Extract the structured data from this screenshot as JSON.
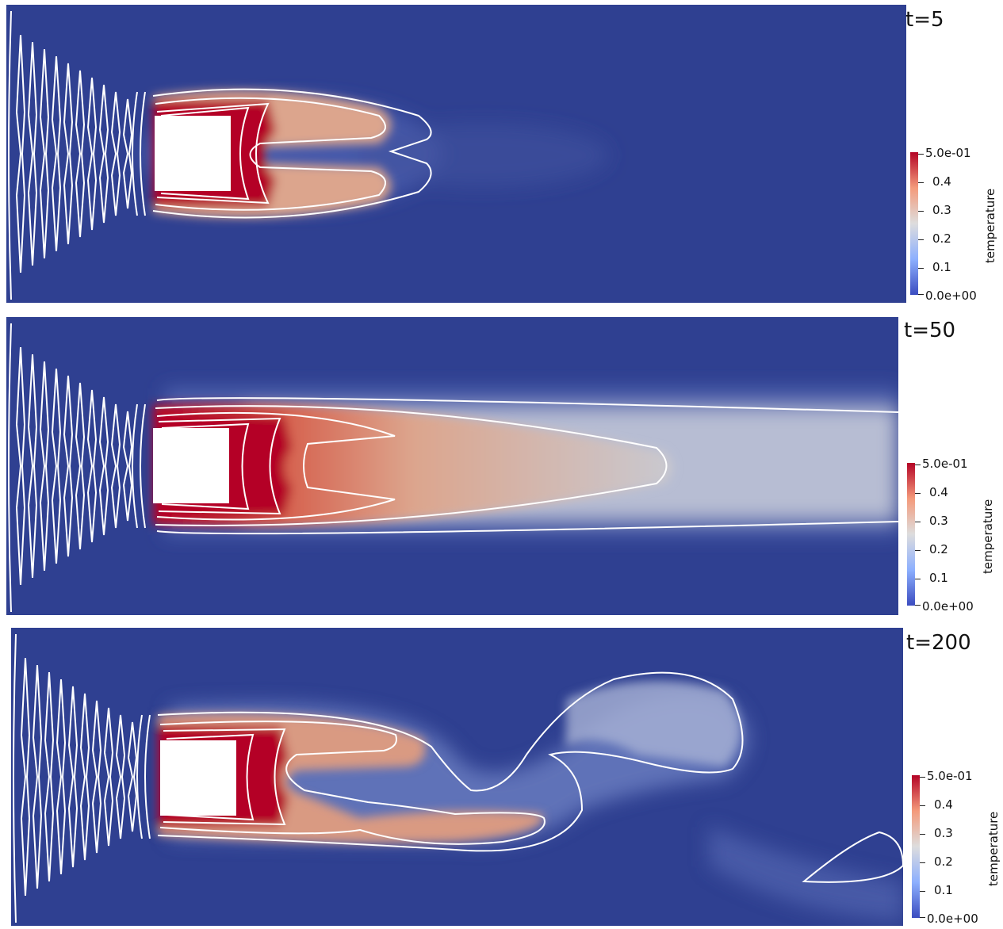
{
  "colors": {
    "background_field": "#2f4091",
    "colormap": [
      "#3b4cc0",
      "#aac7fd",
      "#dddddd",
      "#f7b89c",
      "#b40426"
    ],
    "contour": "#ffffff",
    "obstacle": "#ffffff"
  },
  "colorbar": {
    "title": "temperature",
    "ticks": [
      "5.0e-01",
      "0.4",
      "0.3",
      "0.2",
      "0.1",
      "0.0e+00"
    ]
  },
  "panels": [
    {
      "id": "t5",
      "time_label": "t=5"
    },
    {
      "id": "t50",
      "time_label": "t=50"
    },
    {
      "id": "t200",
      "time_label": "t=200"
    }
  ]
}
